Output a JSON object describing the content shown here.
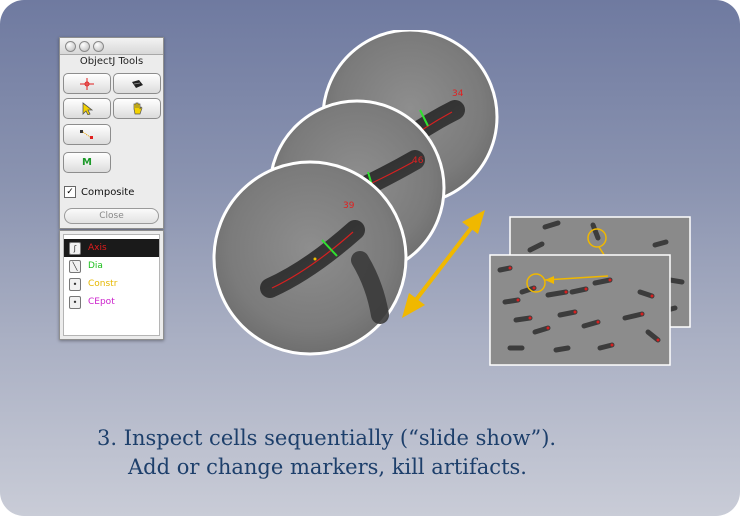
{
  "tools_panel": {
    "title": "ObjectJ Tools",
    "buttons": [
      {
        "icon": "crosshair-marker-icon"
      },
      {
        "icon": "eraser-icon"
      },
      {
        "icon": "arrow-pointer-icon"
      },
      {
        "icon": "hand-icon"
      },
      {
        "icon": "dotted-selection-icon"
      }
    ],
    "m_button_label": "M",
    "composite_label": "Composite",
    "composite_checked": true,
    "close_label": "Close"
  },
  "markers_panel": {
    "items": [
      {
        "label": "Axis",
        "color": "#e01c1c",
        "icon": "composite-icon",
        "selected": true
      },
      {
        "label": "Dia",
        "color": "#20c020",
        "icon": "line-icon",
        "selected": false
      },
      {
        "label": "Constr",
        "color": "#e6b800",
        "icon": "dot-icon",
        "selected": false
      },
      {
        "label": "CEpot",
        "color": "#cc22cc",
        "icon": "dot-icon",
        "selected": false
      }
    ]
  },
  "cell_views": {
    "labels": [
      "34",
      "46",
      "39"
    ]
  },
  "caption": {
    "line1": "3. Inspect cells sequentially (“slide show”).",
    "line2": "Add or change markers, kill artifacts."
  }
}
